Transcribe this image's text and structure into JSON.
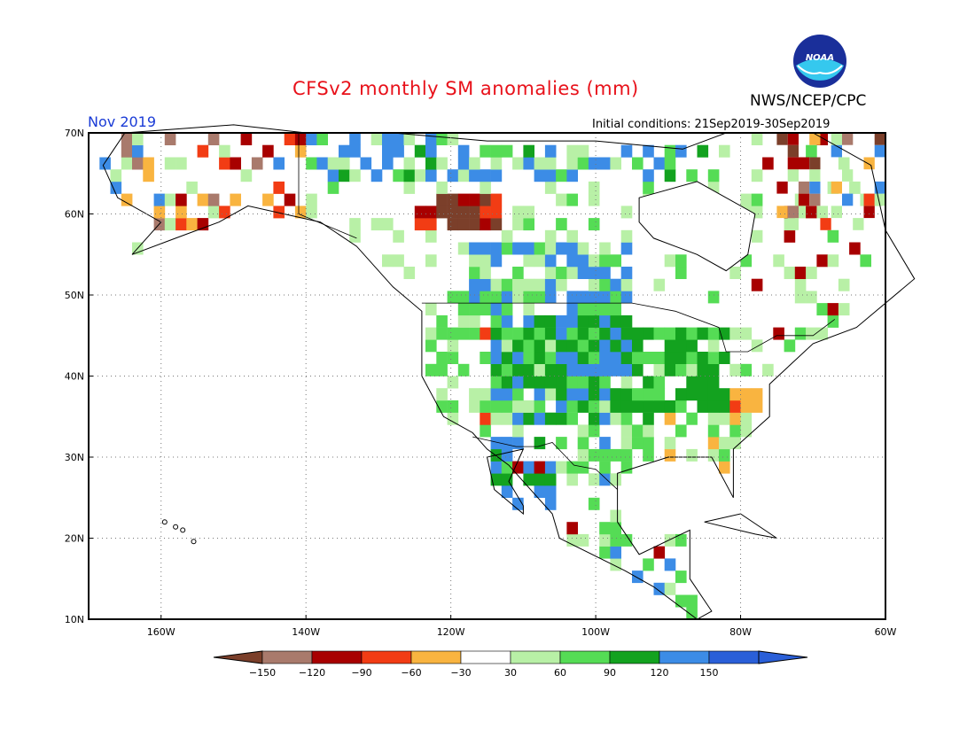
{
  "title": "CFSv2 monthly SM anomalies (mm)",
  "agency": "NWS/NCEP/CPC",
  "logo_text": "NOAA",
  "month": "Nov 2019",
  "initial_conditions": "Initial conditions: 21Sep2019-30Sep2019",
  "colors": {
    "title": "#e8111a",
    "month": "#1a3bd6",
    "bins": [
      "#7b3f2a",
      "#a97a6c",
      "#a80000",
      "#f23c14",
      "#f9b440",
      "#ffffff",
      "#b8f0a6",
      "#55dc55",
      "#13a21f",
      "#3c8ce6",
      "#2a5fd8"
    ]
  },
  "lat_labels": [
    "70N",
    "60N",
    "50N",
    "40N",
    "30N",
    "20N",
    "10N"
  ],
  "lon_labels": [
    "160W",
    "140W",
    "120W",
    "100W",
    "80W",
    "60W"
  ],
  "colorbar": {
    "labels": [
      "-150",
      "-120",
      "-90",
      "-60",
      "-30",
      "30",
      "60",
      "90",
      "120",
      "150"
    ]
  },
  "chart_data": {
    "type": "heatmap",
    "variable": "Soil moisture anomaly (mm)",
    "lat_range": [
      10,
      70
    ],
    "lon_range": [
      -170,
      -60
    ],
    "bins": [
      -150,
      -120,
      -90,
      -60,
      -30,
      30,
      60,
      90,
      120,
      150
    ],
    "regions": [
      {
        "lat": [
          34,
          48
        ],
        "lon": [
          -115,
          -98
        ],
        "bin": "90 to 150"
      },
      {
        "lat": [
          40,
          48
        ],
        "lon": [
          -105,
          -95
        ],
        "bin": "120 to 150"
      },
      {
        "lat": [
          22,
          33
        ],
        "lon": [
          -114,
          -106
        ],
        "bin": "120 to 150"
      },
      {
        "lat": [
          36,
          46
        ],
        "lon": [
          -98,
          -82
        ],
        "bin": "60 to 120"
      },
      {
        "lat": [
          58,
          68
        ],
        "lon": [
          -125,
          -113
        ],
        "bin": "-120 to -30"
      },
      {
        "lat": [
          35,
          38
        ],
        "lon": [
          -82,
          -76
        ],
        "bin": "-90 to -30"
      }
    ]
  }
}
